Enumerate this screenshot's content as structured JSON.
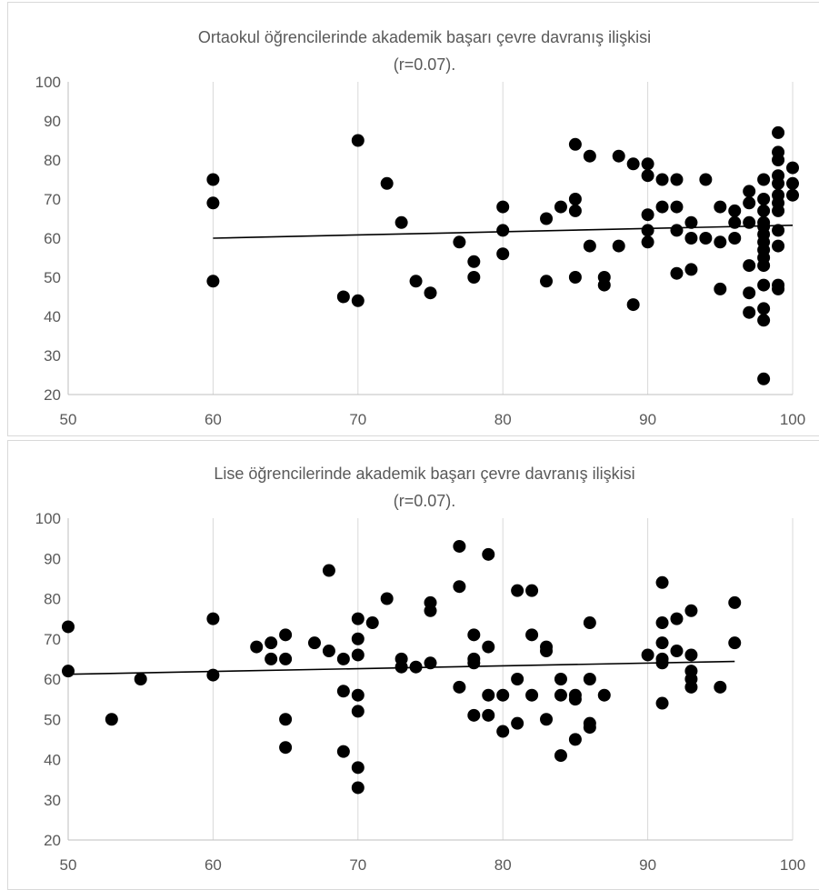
{
  "chart_data": [
    {
      "type": "scatter",
      "title_line1": "Ortaokul öğrencilerinde akademik başarı çevre davranış ilişkisi",
      "title_line2": "(r=0.07).",
      "xlim": [
        50,
        100
      ],
      "ylim": [
        20,
        100
      ],
      "x_ticks": [
        50,
        60,
        70,
        80,
        90,
        100
      ],
      "y_ticks": [
        20,
        30,
        40,
        50,
        60,
        70,
        80,
        90,
        100
      ],
      "grid": "vertical",
      "trendline": {
        "x": [
          60,
          100
        ],
        "y": [
          60.0,
          63.3
        ]
      },
      "points": [
        [
          60,
          75
        ],
        [
          60,
          69
        ],
        [
          60,
          49
        ],
        [
          69,
          45
        ],
        [
          70,
          85
        ],
        [
          70,
          44
        ],
        [
          72,
          74
        ],
        [
          73,
          64
        ],
        [
          74,
          49
        ],
        [
          75,
          46
        ],
        [
          77,
          59
        ],
        [
          78,
          54
        ],
        [
          78,
          50
        ],
        [
          80,
          68
        ],
        [
          80,
          62
        ],
        [
          80,
          56
        ],
        [
          83,
          65
        ],
        [
          83,
          49
        ],
        [
          84,
          68
        ],
        [
          85,
          84
        ],
        [
          85,
          70
        ],
        [
          85,
          67
        ],
        [
          85,
          50
        ],
        [
          86,
          81
        ],
        [
          86,
          58
        ],
        [
          87,
          50
        ],
        [
          87,
          48
        ],
        [
          88,
          81
        ],
        [
          88,
          58
        ],
        [
          89,
          79
        ],
        [
          89,
          43
        ],
        [
          90,
          79
        ],
        [
          90,
          76
        ],
        [
          90,
          66
        ],
        [
          90,
          62
        ],
        [
          90,
          59
        ],
        [
          91,
          75
        ],
        [
          91,
          68
        ],
        [
          92,
          75
        ],
        [
          92,
          68
        ],
        [
          92,
          62
        ],
        [
          92,
          51
        ],
        [
          93,
          64
        ],
        [
          93,
          60
        ],
        [
          93,
          52
        ],
        [
          94,
          75
        ],
        [
          94,
          60
        ],
        [
          95,
          68
        ],
        [
          95,
          59
        ],
        [
          95,
          47
        ],
        [
          96,
          67
        ],
        [
          96,
          64
        ],
        [
          96,
          60
        ],
        [
          97,
          72
        ],
        [
          97,
          69
        ],
        [
          97,
          64
        ],
        [
          97,
          53
        ],
        [
          97,
          46
        ],
        [
          97,
          41
        ],
        [
          98,
          75
        ],
        [
          98,
          70
        ],
        [
          98,
          67
        ],
        [
          98,
          64
        ],
        [
          98,
          63
        ],
        [
          98,
          61
        ],
        [
          98,
          59
        ],
        [
          98,
          57
        ],
        [
          98,
          55
        ],
        [
          98,
          53
        ],
        [
          98,
          48
        ],
        [
          98,
          42
        ],
        [
          98,
          39
        ],
        [
          98,
          24
        ],
        [
          99,
          87
        ],
        [
          99,
          82
        ],
        [
          99,
          80
        ],
        [
          99,
          76
        ],
        [
          99,
          74
        ],
        [
          99,
          71
        ],
        [
          99,
          69
        ],
        [
          99,
          67
        ],
        [
          99,
          62
        ],
        [
          99,
          58
        ],
        [
          99,
          48
        ],
        [
          99,
          47
        ],
        [
          100,
          78
        ],
        [
          100,
          74
        ],
        [
          100,
          71
        ]
      ]
    },
    {
      "type": "scatter",
      "title_line1": "Lise öğrencilerinde akademik başarı çevre davranış ilişkisi",
      "title_line2": "(r=0.07).",
      "xlim": [
        50,
        100
      ],
      "ylim": [
        20,
        100
      ],
      "x_ticks": [
        50,
        60,
        70,
        80,
        90,
        100
      ],
      "y_ticks": [
        20,
        30,
        40,
        50,
        60,
        70,
        80,
        90,
        100
      ],
      "grid": "vertical",
      "trendline": {
        "x": [
          50,
          96
        ],
        "y": [
          61.2,
          64.4
        ]
      },
      "points": [
        [
          50,
          73
        ],
        [
          50,
          62
        ],
        [
          53,
          50
        ],
        [
          55,
          60
        ],
        [
          60,
          75
        ],
        [
          60,
          61
        ],
        [
          63,
          68
        ],
        [
          64,
          69
        ],
        [
          64,
          65
        ],
        [
          65,
          71
        ],
        [
          65,
          65
        ],
        [
          65,
          50
        ],
        [
          65,
          43
        ],
        [
          67,
          69
        ],
        [
          68,
          87
        ],
        [
          68,
          67
        ],
        [
          69,
          65
        ],
        [
          69,
          57
        ],
        [
          69,
          42
        ],
        [
          70,
          75
        ],
        [
          70,
          70
        ],
        [
          70,
          66
        ],
        [
          70,
          56
        ],
        [
          70,
          52
        ],
        [
          70,
          38
        ],
        [
          70,
          33
        ],
        [
          71,
          74
        ],
        [
          72,
          80
        ],
        [
          73,
          65
        ],
        [
          73,
          63
        ],
        [
          74,
          63
        ],
        [
          75,
          79
        ],
        [
          75,
          77
        ],
        [
          75,
          64
        ],
        [
          77,
          93
        ],
        [
          77,
          83
        ],
        [
          77,
          58
        ],
        [
          78,
          71
        ],
        [
          78,
          65
        ],
        [
          78,
          64
        ],
        [
          78,
          51
        ],
        [
          79,
          91
        ],
        [
          79,
          68
        ],
        [
          79,
          56
        ],
        [
          79,
          51
        ],
        [
          80,
          56
        ],
        [
          80,
          47
        ],
        [
          81,
          82
        ],
        [
          81,
          60
        ],
        [
          81,
          49
        ],
        [
          82,
          82
        ],
        [
          82,
          71
        ],
        [
          82,
          56
        ],
        [
          83,
          68
        ],
        [
          83,
          67
        ],
        [
          83,
          50
        ],
        [
          84,
          60
        ],
        [
          84,
          56
        ],
        [
          84,
          41
        ],
        [
          85,
          56
        ],
        [
          85,
          55
        ],
        [
          85,
          45
        ],
        [
          86,
          74
        ],
        [
          86,
          60
        ],
        [
          86,
          49
        ],
        [
          86,
          48
        ],
        [
          87,
          56
        ],
        [
          90,
          66
        ],
        [
          91,
          84
        ],
        [
          91,
          74
        ],
        [
          91,
          69
        ],
        [
          91,
          65
        ],
        [
          91,
          64
        ],
        [
          91,
          54
        ],
        [
          92,
          75
        ],
        [
          92,
          67
        ],
        [
          93,
          77
        ],
        [
          93,
          66
        ],
        [
          93,
          62
        ],
        [
          93,
          60
        ],
        [
          93,
          58
        ],
        [
          95,
          58
        ],
        [
          96,
          79
        ],
        [
          96,
          69
        ]
      ]
    }
  ]
}
